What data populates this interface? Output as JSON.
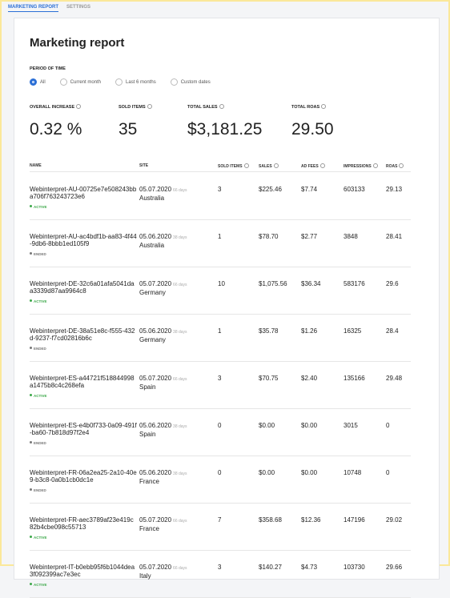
{
  "tabs": [
    "MARKETING REPORT",
    "SETTINGS"
  ],
  "title": "Marketing report",
  "period": {
    "label": "PERIOD OF TIME",
    "options": [
      "All",
      "Current month",
      "Last 6 months",
      "Custom dates"
    ]
  },
  "stats": [
    {
      "label": "OVERALL INCREASE",
      "value": "0.32 %"
    },
    {
      "label": "SOLD ITEMS",
      "value": "35"
    },
    {
      "label": "TOTAL SALES",
      "value": "$3,181.25"
    },
    {
      "label": "TOTAL ROAS",
      "value": "29.50"
    }
  ],
  "table": {
    "headers": [
      "NAME",
      "SITE",
      "SOLD ITEMS",
      "SALES",
      "AD FEES",
      "IMPRESSIONS",
      "ROAS"
    ],
    "rows": [
      {
        "name": "Webinterpret-AU-00725e7e508243bba706f763243723e6",
        "status": "ACTIVE",
        "date": "05.07.2020",
        "days": "66 days",
        "site": "Australia",
        "sold": "3",
        "sales": "$225.46",
        "fees": "$7.74",
        "impressions": "603133",
        "roas": "29.13"
      },
      {
        "name": "Webinterpret-AU-ac4bdf1b-aa83-4f44-9db6-8bbb1ed105f9",
        "status": "ENDED",
        "date": "05.06.2020",
        "days": "38 days",
        "site": "Australia",
        "sold": "1",
        "sales": "$78.70",
        "fees": "$2.77",
        "impressions": "3848",
        "roas": "28.41"
      },
      {
        "name": "Webinterpret-DE-32c6a01afa5041daa3339d87aa9964c8",
        "status": "ACTIVE",
        "date": "05.07.2020",
        "days": "66 days",
        "site": "Germany",
        "sold": "10",
        "sales": "$1,075.56",
        "fees": "$36.34",
        "impressions": "583176",
        "roas": "29.6"
      },
      {
        "name": "Webinterpret-DE-38a51e8c-f555-432d-9237-f7cd02816b6c",
        "status": "ENDED",
        "date": "05.06.2020",
        "days": "38 days",
        "site": "Germany",
        "sold": "1",
        "sales": "$35.78",
        "fees": "$1.26",
        "impressions": "16325",
        "roas": "28.4"
      },
      {
        "name": "Webinterpret-ES-a44721f518844998a1475b8c4c268efa",
        "status": "ACTIVE",
        "date": "05.07.2020",
        "days": "66 days",
        "site": "Spain",
        "sold": "3",
        "sales": "$70.75",
        "fees": "$2.40",
        "impressions": "135166",
        "roas": "29.48"
      },
      {
        "name": "Webinterpret-ES-e4b0f733-0a09-491f-ba60-7b818d97f2e4",
        "status": "ENDED",
        "date": "05.06.2020",
        "days": "38 days",
        "site": "Spain",
        "sold": "0",
        "sales": "$0.00",
        "fees": "$0.00",
        "impressions": "3015",
        "roas": "0"
      },
      {
        "name": "Webinterpret-FR-06a2ea25-2a10-40e9-b3c8-0a0b1cb0dc1e",
        "status": "ENDED",
        "date": "05.06.2020",
        "days": "38 days",
        "site": "France",
        "sold": "0",
        "sales": "$0.00",
        "fees": "$0.00",
        "impressions": "10748",
        "roas": "0"
      },
      {
        "name": "Webinterpret-FR-aec3789af23e419c82b4cbe098c55713",
        "status": "ACTIVE",
        "date": "05.07.2020",
        "days": "66 days",
        "site": "France",
        "sold": "7",
        "sales": "$358.68",
        "fees": "$12.36",
        "impressions": "147196",
        "roas": "29.02"
      },
      {
        "name": "Webinterpret-IT-b0ebb95f6b1044dea3f092399ac7e3ec",
        "status": "ACTIVE",
        "date": "05.07.2020",
        "days": "66 days",
        "site": "Italy",
        "sold": "3",
        "sales": "$140.27",
        "fees": "$4.73",
        "impressions": "103730",
        "roas": "29.66"
      }
    ]
  }
}
